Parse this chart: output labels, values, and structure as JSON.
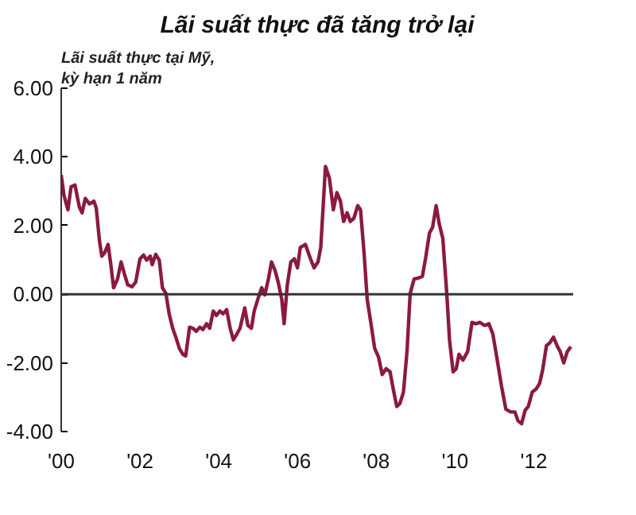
{
  "chart_data": {
    "type": "line",
    "title": "Lãi suất thực đã tăng trở lại",
    "ylabel": "Lãi suất thực tại Mỹ,\nkỳ hạn 1 năm",
    "x": [
      2000.0,
      2000.07,
      2000.17,
      2000.25,
      2000.35,
      2000.46,
      2000.53,
      2000.61,
      2000.72,
      2000.83,
      2000.89,
      2000.97,
      2001.03,
      2001.1,
      2001.19,
      2001.26,
      2001.33,
      2001.43,
      2001.52,
      2001.6,
      2001.69,
      2001.8,
      2001.89,
      2002.0,
      2002.09,
      2002.17,
      2002.26,
      2002.31,
      2002.4,
      2002.49,
      2002.57,
      2002.66,
      2002.74,
      2002.83,
      2002.91,
      2003.0,
      2003.09,
      2003.16,
      2003.26,
      2003.34,
      2003.43,
      2003.52,
      2003.6,
      2003.69,
      2003.77,
      2003.86,
      2003.94,
      2004.03,
      2004.11,
      2004.2,
      2004.29,
      2004.37,
      2004.46,
      2004.54,
      2004.66,
      2004.74,
      2004.83,
      2004.9,
      2005.0,
      2005.09,
      2005.17,
      2005.26,
      2005.34,
      2005.43,
      2005.51,
      2005.6,
      2005.66,
      2005.74,
      2005.83,
      2005.92,
      2006.0,
      2006.07,
      2006.2,
      2006.33,
      2006.42,
      2006.52,
      2006.59,
      2006.71,
      2006.81,
      2006.91,
      2007.0,
      2007.09,
      2007.17,
      2007.26,
      2007.34,
      2007.43,
      2007.53,
      2007.6,
      2007.69,
      2007.77,
      2007.86,
      2007.96,
      2008.06,
      2008.15,
      2008.25,
      2008.35,
      2008.43,
      2008.52,
      2008.6,
      2008.69,
      2008.78,
      2008.86,
      2008.96,
      2009.06,
      2009.17,
      2009.25,
      2009.35,
      2009.43,
      2009.52,
      2009.6,
      2009.69,
      2009.79,
      2009.86,
      2009.95,
      2010.03,
      2010.1,
      2010.2,
      2010.32,
      2010.43,
      2010.53,
      2010.63,
      2010.75,
      2010.86,
      2010.96,
      2011.06,
      2011.18,
      2011.29,
      2011.41,
      2011.52,
      2011.6,
      2011.69,
      2011.78,
      2011.86,
      2011.96,
      2012.06,
      2012.15,
      2012.23,
      2012.32,
      2012.41,
      2012.5,
      2012.59,
      2012.67,
      2012.76,
      2012.85,
      2012.94
    ],
    "series": [
      {
        "color": "#8b1a3f",
        "values": [
          3.47,
          2.88,
          2.46,
          3.13,
          3.18,
          2.54,
          2.37,
          2.79,
          2.63,
          2.71,
          2.51,
          1.57,
          1.11,
          1.2,
          1.45,
          0.86,
          0.19,
          0.44,
          0.94,
          0.61,
          0.27,
          0.22,
          0.35,
          1.03,
          1.14,
          0.99,
          1.11,
          0.86,
          1.16,
          0.99,
          0.19,
          0.02,
          -0.57,
          -0.99,
          -1.25,
          -1.58,
          -1.75,
          -1.8,
          -0.96,
          -0.99,
          -1.08,
          -0.96,
          -1.03,
          -0.86,
          -0.99,
          -0.49,
          -0.62,
          -0.49,
          -0.57,
          -0.45,
          -0.99,
          -1.33,
          -1.16,
          -0.99,
          -0.4,
          -0.91,
          -0.99,
          -0.49,
          -0.12,
          0.19,
          -0.02,
          0.44,
          0.94,
          0.69,
          0.35,
          -0.15,
          -0.86,
          0.27,
          0.94,
          1.03,
          0.77,
          1.36,
          1.45,
          1.03,
          0.77,
          0.94,
          1.36,
          3.72,
          3.38,
          2.46,
          2.96,
          2.71,
          2.12,
          2.37,
          2.12,
          2.21,
          2.58,
          2.46,
          1.2,
          -0.15,
          -0.82,
          -1.58,
          -1.84,
          -2.34,
          -2.17,
          -2.26,
          -2.76,
          -3.27,
          -3.18,
          -2.85,
          -1.67,
          0.02,
          0.44,
          0.47,
          0.52,
          1.03,
          1.78,
          1.95,
          2.58,
          2.04,
          1.62,
          0.02,
          -1.33,
          -2.26,
          -2.17,
          -1.75,
          -1.92,
          -1.67,
          -0.82,
          -0.86,
          -0.82,
          -0.91,
          -0.86,
          -1.16,
          -1.84,
          -2.68,
          -3.35,
          -3.43,
          -3.43,
          -3.69,
          -3.77,
          -3.38,
          -3.27,
          -2.85,
          -2.76,
          -2.59,
          -2.17,
          -1.5,
          -1.41,
          -1.25,
          -1.5,
          -1.67,
          -2.0,
          -1.67,
          -1.53
        ]
      }
    ],
    "xlim": [
      2000,
      2013
    ],
    "xticks": [
      {
        "value": 2000,
        "label": "'00"
      },
      {
        "value": 2002,
        "label": "'02"
      },
      {
        "value": 2004,
        "label": "'04"
      },
      {
        "value": 2006,
        "label": "'06"
      },
      {
        "value": 2008,
        "label": "'08"
      },
      {
        "value": 2010,
        "label": "'10"
      },
      {
        "value": 2012,
        "label": "'12"
      }
    ],
    "ylim": [
      -4,
      6
    ],
    "yticks": [
      {
        "value": 6,
        "label": "6.00"
      },
      {
        "value": 4,
        "label": "4.00"
      },
      {
        "value": 2,
        "label": "2.00"
      },
      {
        "value": 0,
        "label": "0.00"
      },
      {
        "value": -2,
        "label": "-2.00"
      },
      {
        "value": -4,
        "label": "-4.00"
      }
    ],
    "ref_lines": [
      {
        "axis": "y",
        "value": 0,
        "color": "#333333"
      }
    ],
    "grid": false,
    "line_style": "solid",
    "marker": "none"
  }
}
